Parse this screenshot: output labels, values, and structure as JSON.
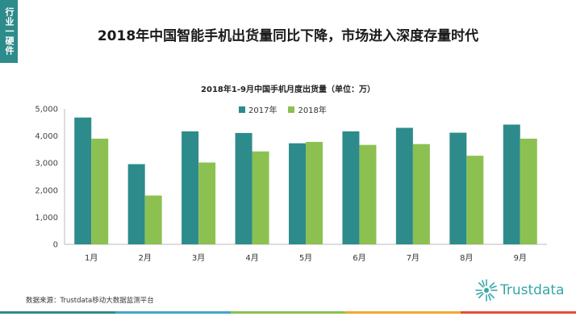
{
  "header": {
    "side_tab": "行业一硬件",
    "page_title": "2018年中国智能手机出货量同比下降，市场进入深度存量时代"
  },
  "footer": {
    "source": "数据来源：Trustdata移动大数据监测平台",
    "logo_text": "Trustdata"
  },
  "colors": {
    "series_2017": "#2e8b8b",
    "series_2018": "#8cc152",
    "tab": "#2e8b8b",
    "bar_segments": [
      "#2e8b8b",
      "#3fa7c6",
      "#8cc152",
      "#f0a830",
      "#e74c3c"
    ]
  },
  "chart_data": {
    "type": "bar",
    "title": "2018年1-9月中国手机月度出货量（单位：万）",
    "categories": [
      "1月",
      "2月",
      "3月",
      "4月",
      "5月",
      "6月",
      "7月",
      "8月",
      "9月"
    ],
    "series": [
      {
        "name": "2017年",
        "values": [
          4680,
          2960,
          4170,
          4110,
          3730,
          4170,
          4300,
          4120,
          4420
        ]
      },
      {
        "name": "2018年",
        "values": [
          3900,
          1800,
          3020,
          3430,
          3780,
          3670,
          3700,
          3270,
          3900
        ]
      }
    ],
    "ylim": [
      0,
      5000
    ],
    "yticks": [
      "0",
      "1,000",
      "2,000",
      "3,000",
      "4,000",
      "5,000"
    ],
    "legend": "top-center",
    "grid": false
  }
}
